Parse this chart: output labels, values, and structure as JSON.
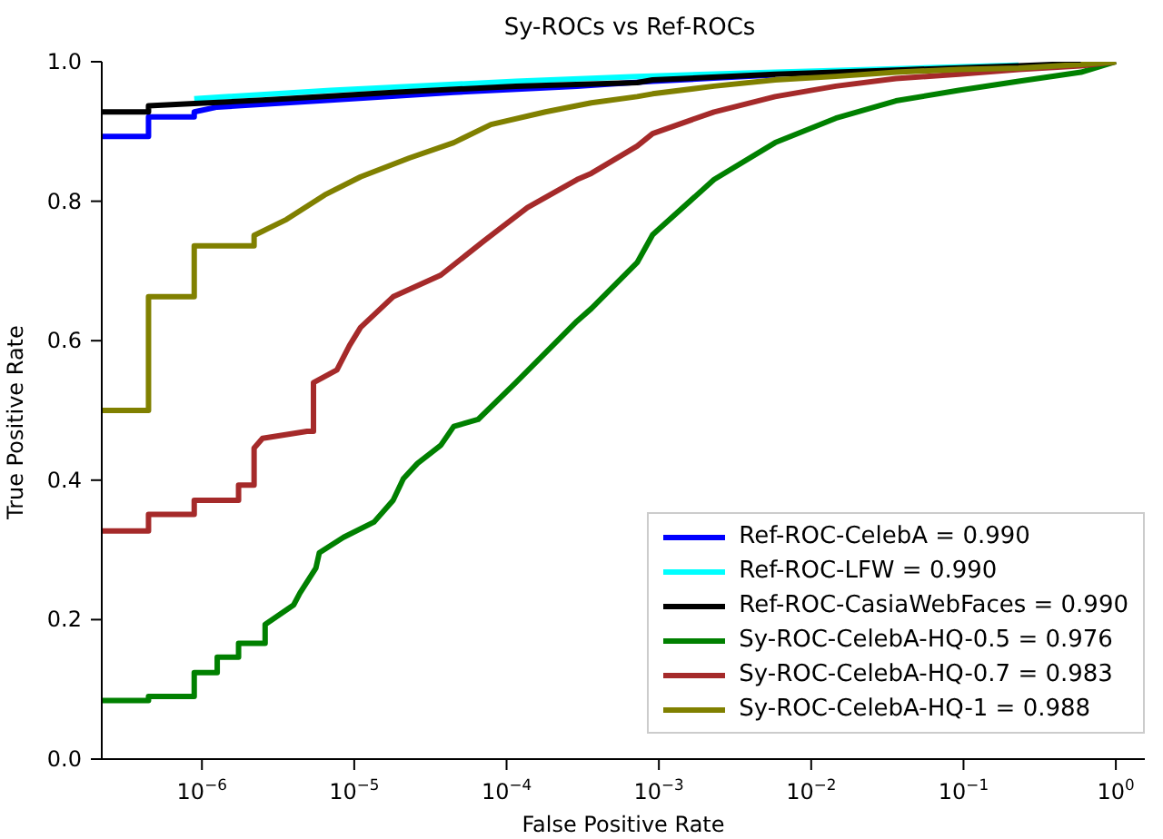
{
  "chart_data": {
    "type": "line",
    "title": "Sy-ROCs vs Ref-ROCs",
    "xlabel": "False Positive Rate",
    "ylabel": "True Positive Rate",
    "log": "x",
    "xlim": [
      2.2e-07,
      1.55
    ],
    "xticks": [
      {
        "value": 1e-06,
        "label": "10$^{−6}$"
      },
      {
        "value": 1e-05,
        "label": "10$^{−5}$"
      },
      {
        "value": 0.0001,
        "label": "10$^{−4}$"
      },
      {
        "value": 0.001,
        "label": "10$^{−3}$"
      },
      {
        "value": 0.01,
        "label": "10$^{−2}$"
      },
      {
        "value": 0.1,
        "label": "10$^{−1}$"
      },
      {
        "value": 1,
        "label": "10$^{0}$"
      }
    ],
    "ylim": [
      0,
      1
    ],
    "yticks": [
      {
        "value": 0,
        "label": "0.0"
      },
      {
        "value": 0.2,
        "label": "0.2"
      },
      {
        "value": 0.4,
        "label": "0.4"
      },
      {
        "value": 0.6,
        "label": "0.6"
      },
      {
        "value": 0.8,
        "label": "0.8"
      },
      {
        "value": 1,
        "label": "1.0"
      }
    ],
    "legend": "bottom right",
    "marker": "none",
    "line_style": "solid",
    "series": [
      {
        "name": "Ref-ROC-CelebA = 0.990",
        "color": "#0000ff",
        "x": [
          2.2e-07,
          4.46e-07,
          4.46e-07,
          8.9e-07,
          8.9e-07,
          1.26e-06,
          7e-06,
          4.5e-05,
          0.00029,
          0.00091,
          0.0058
        ],
        "values": [
          0.893,
          0.893,
          0.921,
          0.921,
          0.928,
          0.935,
          0.945,
          0.956,
          0.965,
          0.972,
          0.981
        ]
      },
      {
        "name": "Ref-ROC-LFW = 0.990",
        "color": "#00ffff",
        "x": [
          8.9e-07,
          7e-06,
          0.000115,
          0.00072,
          0.0058,
          0.036,
          0.23
        ],
        "values": [
          0.947,
          0.959,
          0.972,
          0.979,
          0.985,
          0.99,
          0.995
        ]
      },
      {
        "name": "Ref-ROC-CasiaWebFaces = 0.990",
        "color": "#000000",
        "x": [
          2.2e-07,
          4.46e-07,
          4.46e-07,
          8.9e-07,
          2.5e-06,
          1.8e-05,
          0.000115,
          0.00072,
          0.00091,
          0.0058,
          0.036,
          0.23,
          1
        ],
        "values": [
          0.928,
          0.928,
          0.937,
          0.94,
          0.945,
          0.956,
          0.965,
          0.97,
          0.974,
          0.982,
          0.988,
          0.994,
          1.0
        ]
      },
      {
        "name": "Sy-ROC-CelebA-HQ-0.5 = 0.976",
        "color": "#008000",
        "x": [
          2.2e-07,
          4.46e-07,
          4.46e-07,
          8.9e-07,
          8.9e-07,
          1.26e-06,
          1.26e-06,
          1.74e-06,
          1.74e-06,
          2.6e-06,
          2.6e-06,
          4e-06,
          4.4e-06,
          5.6e-06,
          5.9e-06,
          8.5e-06,
          1.35e-05,
          1.8e-05,
          2.1e-05,
          2.6e-05,
          3.7e-05,
          4.5e-05,
          6.5e-05,
          0.000115,
          0.00029,
          0.00036,
          0.00072,
          0.00091,
          0.0023,
          0.0058,
          0.0145,
          0.036,
          0.093,
          0.23,
          0.59,
          1
        ],
        "values": [
          0.084,
          0.084,
          0.09,
          0.09,
          0.124,
          0.124,
          0.146,
          0.146,
          0.166,
          0.166,
          0.193,
          0.221,
          0.238,
          0.274,
          0.296,
          0.318,
          0.34,
          0.371,
          0.402,
          0.424,
          0.45,
          0.477,
          0.487,
          0.54,
          0.628,
          0.646,
          0.712,
          0.752,
          0.831,
          0.884,
          0.919,
          0.944,
          0.959,
          0.972,
          0.985,
          1.0
        ]
      },
      {
        "name": "Sy-ROC-CelebA-HQ-0.7 = 0.983",
        "color": "#a52a2a",
        "x": [
          2.2e-07,
          4.46e-07,
          4.46e-07,
          8.9e-07,
          8.9e-07,
          1.74e-06,
          1.74e-06,
          2.2e-06,
          2.2e-06,
          2.5e-06,
          4.9e-06,
          5.4e-06,
          5.4e-06,
          7.7e-06,
          9.3e-06,
          1.1e-05,
          1.8e-05,
          3.7e-05,
          7.1e-05,
          0.000137,
          0.00029,
          0.00036,
          0.00072,
          0.00091,
          0.0023,
          0.0058,
          0.0145,
          0.036,
          0.093,
          0.23,
          0.59,
          1
        ],
        "values": [
          0.327,
          0.327,
          0.351,
          0.351,
          0.371,
          0.371,
          0.393,
          0.393,
          0.446,
          0.46,
          0.47,
          0.47,
          0.54,
          0.558,
          0.593,
          0.619,
          0.663,
          0.694,
          0.743,
          0.791,
          0.831,
          0.84,
          0.879,
          0.897,
          0.928,
          0.95,
          0.965,
          0.976,
          0.982,
          0.989,
          0.994,
          1.0
        ]
      },
      {
        "name": "Sy-ROC-CelebA-HQ-1 = 0.988",
        "color": "#808000",
        "x": [
          2.2e-07,
          4.46e-07,
          4.46e-07,
          8.9e-07,
          8.9e-07,
          2.2e-06,
          2.2e-06,
          3.6e-06,
          6.4e-06,
          1.1e-05,
          2.3e-05,
          4.5e-05,
          7.9e-05,
          0.00018,
          0.00036,
          0.00072,
          0.00091,
          0.0023,
          0.0058,
          0.0145,
          0.036,
          0.093,
          0.23,
          0.59,
          1
        ],
        "values": [
          0.5,
          0.5,
          0.663,
          0.663,
          0.736,
          0.736,
          0.751,
          0.774,
          0.809,
          0.835,
          0.862,
          0.884,
          0.91,
          0.928,
          0.941,
          0.95,
          0.954,
          0.965,
          0.974,
          0.979,
          0.985,
          0.989,
          0.991,
          0.996,
          1.0
        ]
      }
    ]
  }
}
